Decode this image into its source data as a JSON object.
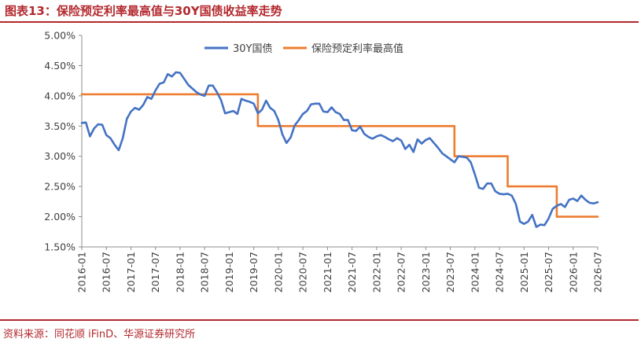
{
  "header": {
    "title": "图表13：保险预定利率最高值与30Y国债收益率走势"
  },
  "footer": {
    "source": "资料来源：同花顺 iFinD、华源证券研究所"
  },
  "colors": {
    "accent": "#b3282d",
    "series_30y": "#4472c4",
    "series_rate": "#ed7d31"
  },
  "chart_data": {
    "type": "line",
    "ylim": [
      1.5,
      5.0
    ],
    "yticks": [
      "1.50%",
      "2.00%",
      "2.50%",
      "3.00%",
      "3.50%",
      "4.00%",
      "4.50%",
      "5.00%"
    ],
    "xlim": [
      "2016-01",
      "2026-07"
    ],
    "xticks": [
      "2016-01",
      "2016-07",
      "2017-01",
      "2017-07",
      "2018-01",
      "2018-07",
      "2019-01",
      "2019-07",
      "2020-01",
      "2020-07",
      "2021-01",
      "2021-07",
      "2022-01",
      "2022-07",
      "2023-01",
      "2023-07",
      "2024-01",
      "2024-07",
      "2025-01",
      "2025-07",
      "2026-01",
      "2026-07"
    ],
    "legend_position": "top",
    "grid": false,
    "series": [
      {
        "name": "30Y国债",
        "x": [
          "2016-01",
          "2016-02",
          "2016-03",
          "2016-04",
          "2016-05",
          "2016-06",
          "2016-07",
          "2016-08",
          "2016-09",
          "2016-10",
          "2016-11",
          "2016-12",
          "2017-01",
          "2017-02",
          "2017-03",
          "2017-04",
          "2017-05",
          "2017-06",
          "2017-07",
          "2017-08",
          "2017-09",
          "2017-10",
          "2017-11",
          "2017-12",
          "2018-01",
          "2018-02",
          "2018-03",
          "2018-04",
          "2018-05",
          "2018-06",
          "2018-07",
          "2018-08",
          "2018-09",
          "2018-10",
          "2018-11",
          "2018-12",
          "2019-01",
          "2019-02",
          "2019-03",
          "2019-04",
          "2019-05",
          "2019-06",
          "2019-07",
          "2019-08",
          "2019-09",
          "2019-10",
          "2019-11",
          "2019-12",
          "2020-01",
          "2020-02",
          "2020-03",
          "2020-04",
          "2020-05",
          "2020-06",
          "2020-07",
          "2020-08",
          "2020-09",
          "2020-10",
          "2020-11",
          "2020-12",
          "2021-01",
          "2021-02",
          "2021-03",
          "2021-04",
          "2021-05",
          "2021-06",
          "2021-07",
          "2021-08",
          "2021-09",
          "2021-10",
          "2021-11",
          "2021-12",
          "2022-01",
          "2022-02",
          "2022-03",
          "2022-04",
          "2022-05",
          "2022-06",
          "2022-07",
          "2022-08",
          "2022-09",
          "2022-10",
          "2022-11",
          "2022-12",
          "2023-01",
          "2023-02",
          "2023-03",
          "2023-04",
          "2023-05",
          "2023-06",
          "2023-07",
          "2023-08",
          "2023-09",
          "2023-10",
          "2023-11",
          "2023-12",
          "2024-01",
          "2024-02",
          "2024-03",
          "2024-04",
          "2024-05",
          "2024-06",
          "2024-07",
          "2024-08",
          "2024-09",
          "2024-10",
          "2024-11",
          "2024-12",
          "2025-01",
          "2025-02",
          "2025-03",
          "2025-04",
          "2025-05",
          "2025-06",
          "2025-07",
          "2025-08",
          "2025-09",
          "2025-10",
          "2025-11",
          "2025-12",
          "2026-01",
          "2026-02",
          "2026-03",
          "2026-04",
          "2026-05",
          "2026-06",
          "2026-07"
        ],
        "values": [
          3.55,
          3.56,
          3.33,
          3.46,
          3.53,
          3.52,
          3.35,
          3.3,
          3.19,
          3.1,
          3.3,
          3.62,
          3.74,
          3.8,
          3.77,
          3.85,
          3.98,
          3.95,
          4.09,
          4.2,
          4.22,
          4.36,
          4.32,
          4.39,
          4.38,
          4.28,
          4.18,
          4.12,
          4.06,
          4.02,
          4.0,
          4.17,
          4.17,
          4.06,
          3.93,
          3.71,
          3.73,
          3.75,
          3.7,
          3.95,
          3.92,
          3.9,
          3.87,
          3.71,
          3.77,
          3.92,
          3.8,
          3.75,
          3.6,
          3.36,
          3.22,
          3.31,
          3.51,
          3.6,
          3.7,
          3.75,
          3.86,
          3.87,
          3.87,
          3.74,
          3.73,
          3.81,
          3.73,
          3.7,
          3.6,
          3.6,
          3.43,
          3.42,
          3.49,
          3.37,
          3.32,
          3.29,
          3.33,
          3.35,
          3.32,
          3.28,
          3.25,
          3.3,
          3.26,
          3.12,
          3.19,
          3.07,
          3.28,
          3.21,
          3.27,
          3.3,
          3.22,
          3.14,
          3.05,
          3.0,
          2.95,
          2.9,
          3.0,
          2.99,
          2.98,
          2.9,
          2.7,
          2.48,
          2.46,
          2.55,
          2.55,
          2.42,
          2.38,
          2.37,
          2.38,
          2.35,
          2.21,
          1.92,
          1.88,
          1.92,
          2.03,
          1.83,
          1.87,
          1.86,
          1.97,
          2.13,
          2.18,
          2.21,
          2.16,
          2.28,
          2.3,
          2.26,
          2.35,
          2.28,
          2.23,
          2.22,
          2.24
        ]
      },
      {
        "name": "保险预定利率最高值",
        "x": [
          "2016-01",
          "2019-08",
          "2019-08",
          "2023-08",
          "2023-08",
          "2024-09",
          "2024-09",
          "2025-09",
          "2025-09",
          "2026-07"
        ],
        "values": [
          4.025,
          4.025,
          3.5,
          3.5,
          3.0,
          3.0,
          2.5,
          2.5,
          2.0,
          2.0
        ],
        "step": true
      }
    ]
  }
}
